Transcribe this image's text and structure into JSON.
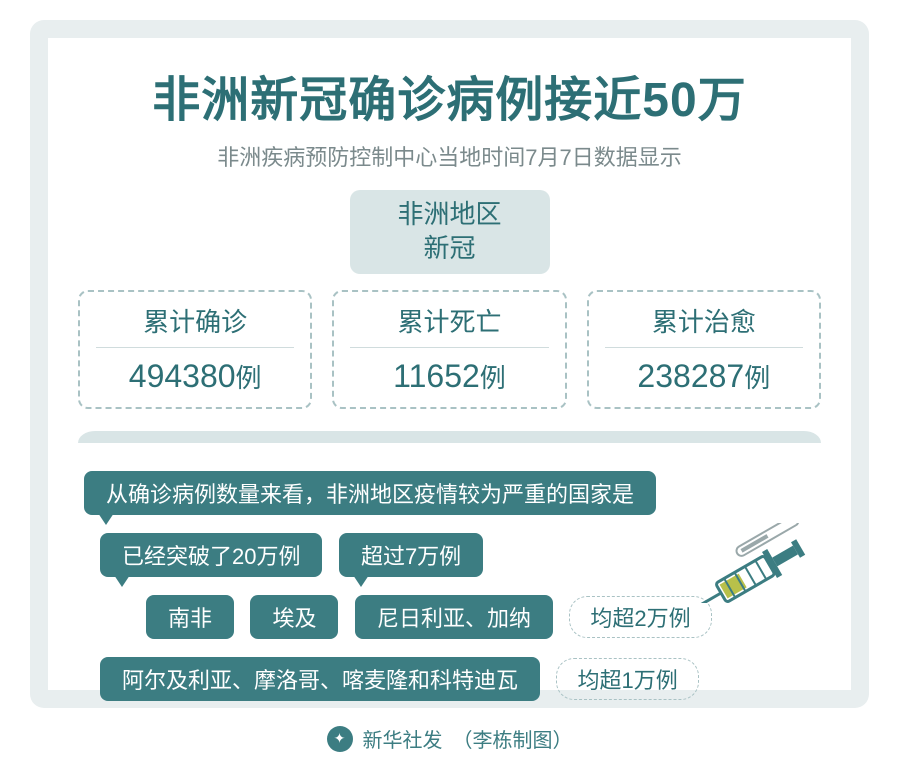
{
  "colors": {
    "border": "#e8eeef",
    "teal_dark": "#2d6f75",
    "teal_mid": "#4a8b8f",
    "subtitle_gray": "#7b8a8c",
    "region_bg": "#d9e5e6",
    "region_text": "#2d6f75",
    "stat_border": "#a9c2c4",
    "stat_label": "#2d6f75",
    "stat_divider": "#d0dcdd",
    "stat_value": "#2d6f75",
    "divider_bg": "#d9e5e6",
    "teal_bar_bg": "#3c7d82",
    "light_tag_border": "#a9c2c4",
    "light_tag_text": "#2d6f75",
    "footer_text": "#3c7d82",
    "logo_bg": "#3c7d82",
    "syringe": "#3c7d82",
    "needle_gray": "#9aa8aa",
    "fluid": "#b8c04a"
  },
  "title": "非洲新冠确诊病例接近50万",
  "subtitle": "非洲疾病预防控制中心当地时间7月7日数据显示",
  "region_box": {
    "line1": "非洲地区",
    "line2": "新冠"
  },
  "stats": [
    {
      "label": "累计确诊",
      "value": "494380",
      "unit": "例"
    },
    {
      "label": "累计死亡",
      "value": "11652",
      "unit": "例"
    },
    {
      "label": "累计治愈",
      "value": "238287",
      "unit": "例"
    }
  ],
  "lead_bar": "从确诊病例数量来看，非洲地区疫情较为严重的国家是",
  "rows": {
    "r2": {
      "t1": "已经突破了20万例",
      "t2": "超过7万例"
    },
    "r3": {
      "c1": "南非",
      "c2": "埃及",
      "c3": "尼日利亚、加纳",
      "tag": "均超2万例"
    },
    "r4": {
      "c1": "阿尔及利亚、摩洛哥、喀麦隆和科特迪瓦",
      "tag": "均超1万例"
    }
  },
  "footer": {
    "source": "新华社发",
    "author": "（李栋制图）",
    "logo_glyph": "✦"
  }
}
